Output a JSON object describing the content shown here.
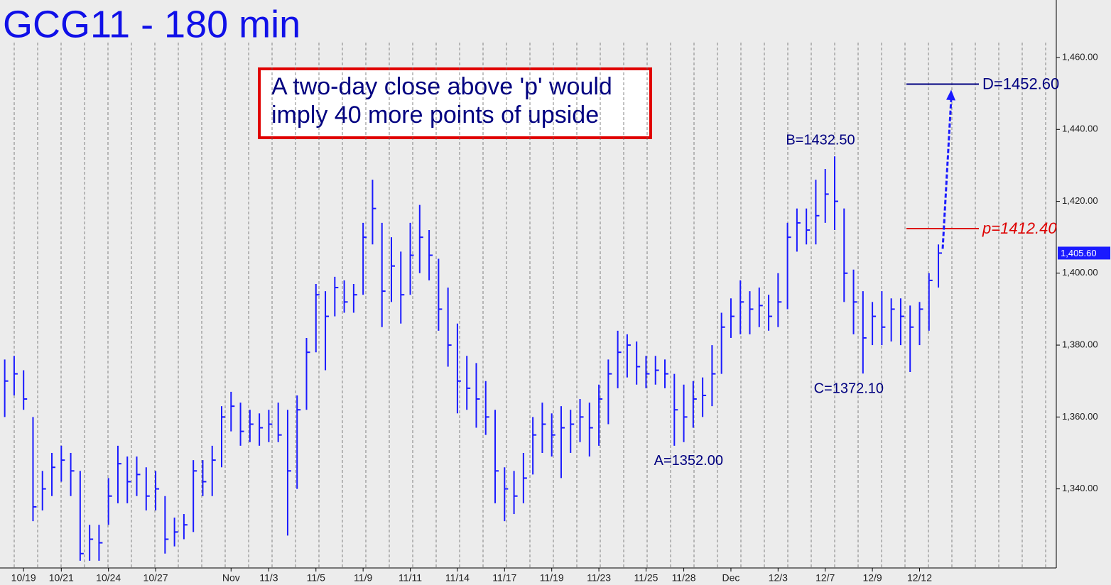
{
  "chart_data": {
    "type": "ohlc",
    "title": "GCG11 - 180 min",
    "color": "#1a1aff",
    "high": [
      1376,
      1377,
      1373,
      1360,
      1345,
      1350,
      1352,
      1350,
      1345,
      1330,
      1330,
      1343,
      1352,
      1349,
      1349,
      1346,
      1345,
      1338,
      1332,
      1333,
      1348,
      1348,
      1352,
      1363,
      1367,
      1364,
      1362,
      1361,
      1362,
      1364,
      1362,
      1366,
      1382,
      1397,
      1395,
      1399,
      1398,
      1397,
      1414,
      1426,
      1414,
      1410,
      1406,
      1414,
      1419,
      1412,
      1404,
      1396,
      1386,
      1377,
      1375,
      1370,
      1362,
      1346,
      1345,
      1350,
      1360,
      1364,
      1361,
      1363,
      1362,
      1365,
      1364,
      1369,
      1376,
      1384,
      1383,
      1381,
      1377,
      1377,
      1376,
      1372,
      1369,
      1370,
      1371,
      1380,
      1389,
      1393,
      1398,
      1395,
      1396,
      1394,
      1400,
      1414,
      1418,
      1418,
      1426,
      1429,
      1432.5,
      1418,
      1401,
      1395,
      1392,
      1395,
      1393,
      1393,
      1391,
      1392,
      1400,
      1408
    ],
    "low": [
      1360,
      1366,
      1362,
      1331,
      1334,
      1338,
      1342,
      1338,
      1320,
      1320,
      1320,
      1330,
      1336,
      1336,
      1338,
      1334,
      1334,
      1322,
      1324,
      1326,
      1328,
      1338,
      1338,
      1346,
      1356,
      1352,
      1353,
      1352,
      1353,
      1353,
      1327,
      1340,
      1362,
      1378,
      1373,
      1388,
      1389,
      1389,
      1394,
      1408,
      1385,
      1392,
      1386,
      1394,
      1400,
      1398,
      1384,
      1374,
      1361,
      1362,
      1357,
      1355,
      1336,
      1331,
      1333,
      1336,
      1344,
      1350,
      1349,
      1343,
      1350,
      1353,
      1349,
      1352,
      1358,
      1368,
      1371,
      1369,
      1368,
      1369,
      1368,
      1352,
      1353,
      1357,
      1360,
      1363,
      1372,
      1382,
      1383,
      1383,
      1385,
      1384,
      1385,
      1390,
      1406,
      1408,
      1408,
      1414,
      1412,
      1392,
      1383,
      1372.1,
      1380,
      1380,
      1381,
      1380,
      1372.5,
      1380,
      1384,
      1396
    ],
    "close": [
      1370,
      1372,
      1365,
      1335,
      1340,
      1346,
      1348,
      1345,
      1322,
      1326,
      1325,
      1338,
      1347,
      1342,
      1344,
      1338,
      1340,
      1326,
      1328,
      1330,
      1345,
      1342,
      1348,
      1360,
      1363,
      1356,
      1358,
      1357,
      1358,
      1355,
      1345,
      1362,
      1378,
      1394,
      1388,
      1396,
      1392,
      1394,
      1410,
      1418,
      1395,
      1402,
      1394,
      1405,
      1410,
      1405,
      1390,
      1380,
      1370,
      1368,
      1365,
      1360,
      1345,
      1340,
      1338,
      1343,
      1355,
      1358,
      1355,
      1357,
      1358,
      1360,
      1357,
      1365,
      1372,
      1378,
      1380,
      1374,
      1372,
      1373,
      1372,
      1362,
      1360,
      1365,
      1366,
      1372,
      1385,
      1388,
      1392,
      1390,
      1391,
      1388,
      1392,
      1410,
      1414,
      1412,
      1416,
      1422,
      1420,
      1400,
      1392,
      1382,
      1388,
      1385,
      1390,
      1388,
      1385,
      1390,
      1398,
      1405.6
    ],
    "xlim": [
      -0.5,
      111.5
    ],
    "xticks": [
      {
        "value": 2,
        "label": "10/19"
      },
      {
        "value": 6,
        "label": "10/21"
      },
      {
        "value": 11,
        "label": "10/24"
      },
      {
        "value": 16,
        "label": "10/27"
      },
      {
        "value": 24,
        "label": "Nov"
      },
      {
        "value": 28,
        "label": "11/3"
      },
      {
        "value": 33,
        "label": "11/5"
      },
      {
        "value": 38,
        "label": "11/9"
      },
      {
        "value": 43,
        "label": "11/11"
      },
      {
        "value": 48,
        "label": "11/14"
      },
      {
        "value": 53,
        "label": "11/17"
      },
      {
        "value": 58,
        "label": "11/19"
      },
      {
        "value": 63,
        "label": "11/23"
      },
      {
        "value": 68,
        "label": "11/25"
      },
      {
        "value": 72,
        "label": "11/28"
      },
      {
        "value": 77,
        "label": "Dec"
      },
      {
        "value": 82,
        "label": "12/3"
      },
      {
        "value": 87,
        "label": "12/7"
      },
      {
        "value": 92,
        "label": "12/9"
      },
      {
        "value": 97,
        "label": "12/12"
      }
    ],
    "ylim": [
      1318,
      1476
    ],
    "yticks": [
      {
        "value": 1340,
        "label": "1,340.00"
      },
      {
        "value": 1360,
        "label": "1,360.00"
      },
      {
        "value": 1380,
        "label": "1,380.00"
      },
      {
        "value": 1400,
        "label": "1,400.00"
      },
      {
        "value": 1420,
        "label": "1,420.00"
      },
      {
        "value": 1440,
        "label": "1,440.00"
      },
      {
        "value": 1460,
        "label": "1,460.00"
      }
    ],
    "last_price": {
      "value": 1405.6,
      "label": "1,405.60"
    },
    "points": [
      {
        "label": "A=1352.00",
        "value": 1352,
        "x": 71
      },
      {
        "label": "B=1432.50",
        "value": 1432.5,
        "x": 88
      },
      {
        "label": "C=1372.10",
        "value": 1372.1,
        "x": 91
      }
    ],
    "levels": [
      {
        "label": "p=1412.40",
        "value": 1412.4,
        "color": "#dd0000"
      },
      {
        "label": "D=1452.60",
        "value": 1452.6,
        "color": "#000080"
      }
    ],
    "note": [
      "A two-day close above 'p' would",
      "imply 40 more points of upside"
    ]
  }
}
